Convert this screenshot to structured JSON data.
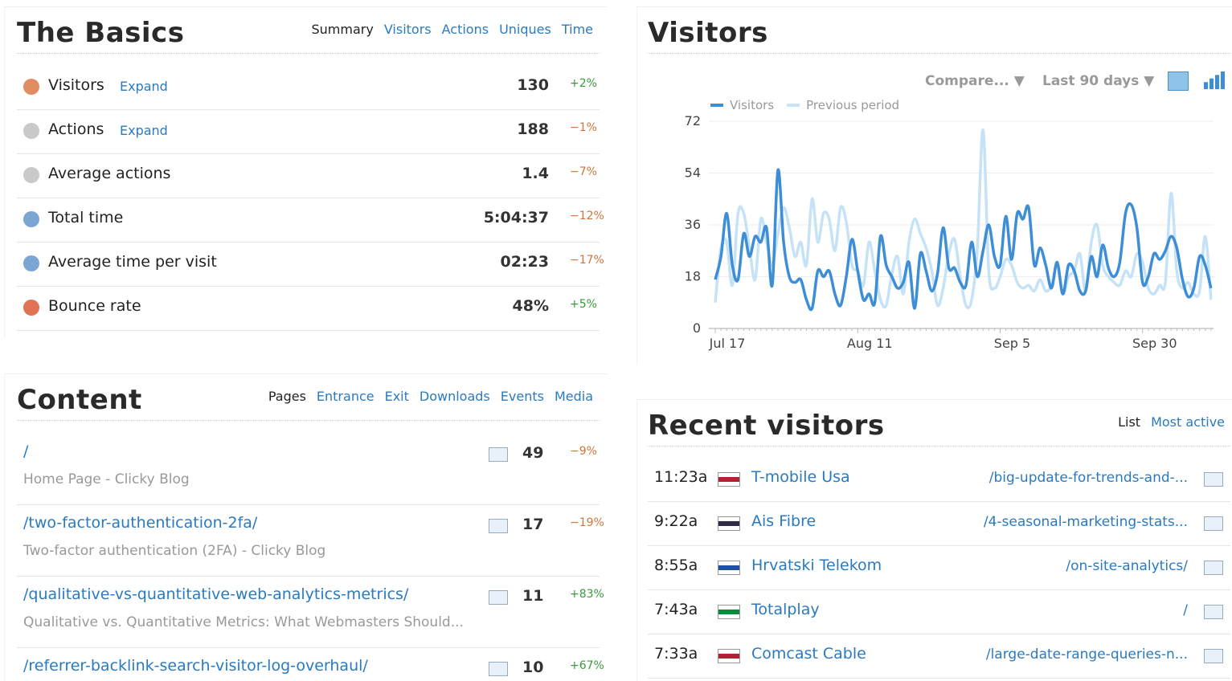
{
  "basics": {
    "title": "The Basics",
    "tabs": [
      "Summary",
      "Visitors",
      "Actions",
      "Uniques",
      "Time"
    ],
    "rows": [
      {
        "label": "Visitors",
        "link": "Expand",
        "value": "130",
        "change": "+2%"
      },
      {
        "label": "Actions",
        "link": "Expand",
        "value": "188",
        "change": "−1%"
      },
      {
        "label": "Average actions",
        "value": "1.4",
        "change": "−7%"
      },
      {
        "label": "Total time",
        "value": "5:04:37",
        "change": "−12%"
      },
      {
        "label": "Average time per visit",
        "value": "02:23",
        "change": "−17%"
      },
      {
        "label": "Bounce rate",
        "value": "48%",
        "change": "+5%"
      }
    ]
  },
  "content": {
    "title": "Content",
    "tabs": [
      "Pages",
      "Entrance",
      "Exit",
      "Downloads",
      "Events",
      "Media"
    ],
    "rows": [
      {
        "path": "/",
        "title": "Home Page - Clicky Blog",
        "count": "49",
        "change": "−9%"
      },
      {
        "path": "/two-factor-authentication-2fa/",
        "title": "Two-factor authentication (2FA) - Clicky Blog",
        "count": "17",
        "change": "−19%"
      },
      {
        "path": "/qualitative-vs-quantitative-web-analytics-metrics/",
        "title": "Qualitative vs. Quantitative Metrics: What Webmasters Should...",
        "count": "11",
        "change": "+83%"
      },
      {
        "path": "/referrer-backlink-search-visitor-log-overhaul/",
        "count": "10",
        "change": "+67%"
      }
    ]
  },
  "visitors_panel": {
    "controls": [
      "Compare...",
      "Last 90 days"
    ]
  },
  "chart_data": {
    "type": "line",
    "title": "Visitors",
    "categories": [
      "Jul 17",
      null,
      null,
      null,
      null,
      null,
      null,
      null,
      null,
      null,
      null,
      null,
      null,
      null,
      null,
      null,
      null,
      null,
      null,
      null,
      null,
      null,
      null,
      null,
      null,
      "Aug 11",
      null,
      null,
      null,
      null,
      null,
      null,
      null,
      null,
      null,
      null,
      null,
      null,
      null,
      null,
      null,
      null,
      null,
      null,
      null,
      null,
      null,
      null,
      null,
      null,
      "Sep 5",
      null,
      null,
      null,
      null,
      null,
      null,
      null,
      null,
      null,
      null,
      null,
      null,
      null,
      null,
      null,
      null,
      null,
      null,
      null,
      null,
      null,
      null,
      null,
      null,
      "Sep 30",
      null,
      null,
      null,
      null,
      null,
      null,
      null,
      null,
      null,
      null,
      null,
      null
    ],
    "series": [
      {
        "name": "Previous period",
        "color": "#c6e2f7",
        "values": [
          9,
          28,
          30,
          15,
          40,
          40,
          28,
          17,
          38,
          30,
          22,
          33,
          42,
          35,
          25,
          30,
          22,
          45,
          30,
          40,
          38,
          27,
          42,
          37,
          22,
          20,
          15,
          30,
          20,
          10,
          8,
          19,
          25,
          12,
          30,
          38,
          33,
          28,
          20,
          8,
          14,
          26,
          31,
          18,
          8,
          10,
          28,
          69,
          20,
          14,
          18,
          24,
          22,
          16,
          14,
          15,
          13,
          17,
          13,
          15,
          22,
          12,
          18,
          20,
          26,
          13,
          30,
          36,
          22,
          18,
          16,
          15,
          20,
          18,
          26,
          23,
          14,
          12,
          15,
          16,
          47,
          20,
          14,
          16,
          12,
          13,
          32,
          10
        ]
      },
      {
        "name": "Visitors",
        "color": "#3d8ed6",
        "values": [
          17,
          25,
          40,
          22,
          17,
          33,
          25,
          32,
          30,
          35,
          15,
          55,
          30,
          18,
          16,
          17,
          10,
          7,
          20,
          18,
          20,
          12,
          8,
          18,
          31,
          20,
          10,
          12,
          9,
          32,
          22,
          18,
          14,
          16,
          23,
          7,
          26,
          20,
          13,
          19,
          35,
          21,
          21,
          16,
          15,
          30,
          18,
          27,
          36,
          25,
          22,
          39,
          24,
          40,
          38,
          42,
          22,
          28,
          22,
          14,
          23,
          12,
          22,
          20,
          13,
          13,
          25,
          18,
          29,
          21,
          18,
          23,
          40,
          43,
          35,
          16,
          18,
          26,
          24,
          27,
          32,
          28,
          17,
          11,
          14,
          25,
          22,
          14
        ]
      }
    ],
    "ylim": [
      0,
      72
    ],
    "yticks": [
      0,
      18,
      36,
      54,
      72
    ],
    "grid": true
  },
  "recent": {
    "title": "Recent visitors",
    "tabs": [
      "List",
      "Most active"
    ],
    "rows": [
      {
        "time": "11:23a",
        "org": "T-mobile Usa",
        "page": "/big-update-for-trends-and-..."
      },
      {
        "time": "9:22a",
        "org": "Ais Fibre",
        "page": "/4-seasonal-marketing-stats..."
      },
      {
        "time": "8:55a",
        "org": "Hrvatski Telekom",
        "page": "/on-site-analytics/"
      },
      {
        "time": "7:43a",
        "org": "Totalplay",
        "page": "/"
      },
      {
        "time": "7:33a",
        "org": "Comcast Cable",
        "page": "/large-date-range-queries-n..."
      }
    ]
  }
}
